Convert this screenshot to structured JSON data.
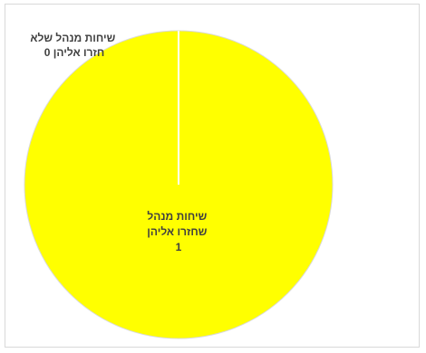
{
  "chart_data": {
    "type": "pie",
    "categories": [
      "שיחות מנהל שלא חזרו אליהן",
      "שיחות מנהל שחזרו אליהן"
    ],
    "values": [
      0,
      1
    ],
    "colors": [
      "#ffffff",
      "#ffff00"
    ],
    "data_labels": [
      [
        "שיחות מנהל שלא",
        "חזרו אליהן 0"
      ],
      [
        "שיחות מנהל",
        "שחזרו אליהן",
        "1"
      ]
    ],
    "slice_border_color": "#d9d9d9",
    "legend": "none",
    "grid": false
  }
}
